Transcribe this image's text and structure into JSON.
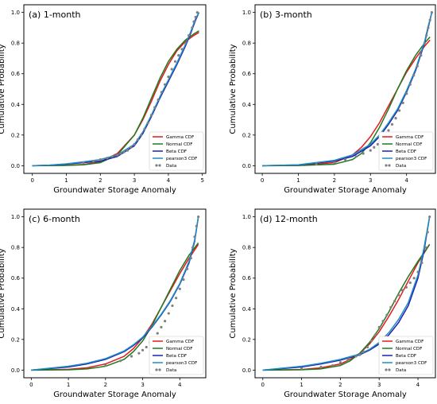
{
  "chart_data": [
    {
      "type": "line",
      "title": "(a) 1-month",
      "xlabel": "Groundwater Storage Anomaly",
      "ylabel": "Cumulative Probability",
      "xlim": [
        -0.25,
        5.1
      ],
      "ylim": [
        -0.05,
        1.05
      ],
      "xticks": [
        0,
        1,
        2,
        3,
        4,
        5
      ],
      "yticks": [
        0.0,
        0.2,
        0.4,
        0.6,
        0.8,
        1.0
      ],
      "grid": false,
      "legend": "bottom-right",
      "series": [
        {
          "name": "Gamma CDF",
          "color": "#e31a1c",
          "x": [
            0,
            1,
            1.5,
            2,
            2.5,
            3,
            3.25,
            3.5,
            3.75,
            4,
            4.25,
            4.5,
            4.75,
            4.9
          ],
          "y": [
            0,
            0.003,
            0.008,
            0.025,
            0.08,
            0.2,
            0.3,
            0.42,
            0.55,
            0.66,
            0.75,
            0.81,
            0.85,
            0.87
          ]
        },
        {
          "name": "Normal CDF",
          "color": "#1f7a1f",
          "x": [
            0,
            1,
            1.5,
            2,
            2.5,
            3,
            3.25,
            3.5,
            3.75,
            4,
            4.25,
            4.5,
            4.75,
            4.9
          ],
          "y": [
            0,
            0.002,
            0.006,
            0.02,
            0.07,
            0.2,
            0.31,
            0.44,
            0.57,
            0.68,
            0.76,
            0.82,
            0.86,
            0.88
          ]
        },
        {
          "name": "Beta CDF",
          "color": "#1f1fb4",
          "x": [
            0,
            0.5,
            1,
            1.5,
            2,
            2.5,
            3,
            3.25,
            3.5,
            3.75,
            4,
            4.25,
            4.5,
            4.65,
            4.8,
            4.9
          ],
          "y": [
            0,
            0.003,
            0.01,
            0.02,
            0.03,
            0.06,
            0.13,
            0.21,
            0.32,
            0.44,
            0.55,
            0.66,
            0.78,
            0.86,
            0.95,
            1.0
          ]
        },
        {
          "name": "pearson3 CDF",
          "color": "#1f8fbf",
          "x": [
            0,
            0.5,
            1,
            1.5,
            2,
            2.5,
            3,
            3.25,
            3.5,
            3.75,
            4,
            4.25,
            4.5,
            4.65,
            4.8,
            4.9
          ],
          "y": [
            0,
            0.004,
            0.012,
            0.025,
            0.04,
            0.07,
            0.14,
            0.22,
            0.33,
            0.45,
            0.56,
            0.67,
            0.79,
            0.87,
            0.96,
            1.0
          ]
        },
        {
          "name": "Data",
          "color": "#808080",
          "marker": "o",
          "x": [
            1.5,
            1.8,
            2.0,
            2.2,
            2.35,
            2.5,
            2.6,
            2.7,
            2.8,
            2.9,
            3.0,
            3.1,
            3.2,
            3.3,
            3.4,
            3.5,
            3.6,
            3.7,
            3.8,
            3.9,
            4.0,
            4.1,
            4.2,
            4.3,
            4.4,
            4.5,
            4.6,
            4.7,
            4.75,
            4.8,
            4.85
          ],
          "y": [
            0.02,
            0.03,
            0.04,
            0.05,
            0.06,
            0.07,
            0.08,
            0.09,
            0.1,
            0.12,
            0.14,
            0.17,
            0.2,
            0.24,
            0.28,
            0.33,
            0.38,
            0.43,
            0.48,
            0.53,
            0.58,
            0.63,
            0.68,
            0.72,
            0.76,
            0.8,
            0.85,
            0.9,
            0.94,
            0.97,
            1.0
          ]
        }
      ]
    },
    {
      "type": "line",
      "title": "(b) 3-month",
      "xlabel": "Groundwater Storage Anomaly",
      "ylabel": "Cumulative Probability",
      "xlim": [
        -0.2,
        4.8
      ],
      "ylim": [
        -0.05,
        1.05
      ],
      "xticks": [
        0,
        1,
        2,
        3,
        4
      ],
      "yticks": [
        0.0,
        0.2,
        0.4,
        0.6,
        0.8,
        1.0
      ],
      "grid": false,
      "legend": "bottom-right",
      "series": [
        {
          "name": "Gamma CDF",
          "color": "#e31a1c",
          "x": [
            0,
            1,
            2,
            2.5,
            2.75,
            3,
            3.25,
            3.5,
            3.75,
            4,
            4.25,
            4.5,
            4.65
          ],
          "y": [
            0,
            0.001,
            0.02,
            0.07,
            0.12,
            0.19,
            0.28,
            0.39,
            0.5,
            0.61,
            0.7,
            0.78,
            0.82
          ]
        },
        {
          "name": "Normal CDF",
          "color": "#1f7a1f",
          "x": [
            0,
            1,
            2,
            2.5,
            2.75,
            3,
            3.25,
            3.5,
            3.75,
            4,
            4.25,
            4.5,
            4.65
          ],
          "y": [
            0,
            0.001,
            0.01,
            0.04,
            0.08,
            0.15,
            0.25,
            0.37,
            0.5,
            0.62,
            0.72,
            0.8,
            0.84
          ]
        },
        {
          "name": "Beta CDF",
          "color": "#1f1fb4",
          "x": [
            0,
            1,
            2,
            2.5,
            3,
            3.25,
            3.5,
            3.75,
            4,
            4.25,
            4.5,
            4.6,
            4.7
          ],
          "y": [
            0,
            0.005,
            0.03,
            0.06,
            0.13,
            0.19,
            0.27,
            0.36,
            0.48,
            0.62,
            0.8,
            0.9,
            1.0
          ]
        },
        {
          "name": "pearson3 CDF",
          "color": "#1f8fbf",
          "x": [
            0,
            1,
            2,
            2.5,
            3,
            3.25,
            3.5,
            3.75,
            4,
            4.25,
            4.5,
            4.6,
            4.7
          ],
          "y": [
            0,
            0.006,
            0.035,
            0.07,
            0.14,
            0.2,
            0.28,
            0.37,
            0.49,
            0.63,
            0.81,
            0.91,
            1.0
          ]
        },
        {
          "name": "Data",
          "color": "#808080",
          "marker": "o",
          "x": [
            1.5,
            2.0,
            2.3,
            2.6,
            2.8,
            3.0,
            3.1,
            3.2,
            3.3,
            3.4,
            3.5,
            3.6,
            3.7,
            3.8,
            3.9,
            4.0,
            4.1,
            4.2,
            4.3,
            4.4,
            4.5,
            4.55,
            4.6,
            4.65,
            4.7
          ],
          "y": [
            0.01,
            0.02,
            0.04,
            0.06,
            0.08,
            0.1,
            0.12,
            0.14,
            0.17,
            0.2,
            0.23,
            0.27,
            0.31,
            0.36,
            0.41,
            0.47,
            0.53,
            0.59,
            0.65,
            0.72,
            0.8,
            0.85,
            0.9,
            0.95,
            1.0
          ]
        }
      ]
    },
    {
      "type": "line",
      "title": "(c) 6-month",
      "xlabel": "Groundwater Storage Anomaly",
      "ylabel": "Cumulative Probability",
      "xlim": [
        -0.2,
        4.7
      ],
      "ylim": [
        -0.05,
        1.05
      ],
      "xticks": [
        0,
        1,
        2,
        3,
        4
      ],
      "yticks": [
        0.0,
        0.2,
        0.4,
        0.6,
        0.8,
        1.0
      ],
      "grid": false,
      "legend": "bottom-right",
      "series": [
        {
          "name": "Gamma CDF",
          "color": "#e31a1c",
          "x": [
            0,
            1,
            1.5,
            2,
            2.5,
            2.75,
            3,
            3.25,
            3.5,
            3.75,
            4,
            4.25,
            4.5
          ],
          "y": [
            0,
            0.005,
            0.015,
            0.04,
            0.09,
            0.14,
            0.21,
            0.3,
            0.41,
            0.52,
            0.63,
            0.73,
            0.82
          ]
        },
        {
          "name": "Normal CDF",
          "color": "#1f7a1f",
          "x": [
            0,
            1,
            1.5,
            2,
            2.5,
            2.75,
            3,
            3.25,
            3.5,
            3.75,
            4,
            4.25,
            4.5
          ],
          "y": [
            0,
            0.002,
            0.008,
            0.025,
            0.07,
            0.12,
            0.19,
            0.29,
            0.41,
            0.53,
            0.65,
            0.75,
            0.83
          ]
        },
        {
          "name": "Beta CDF",
          "color": "#1f1fb4",
          "x": [
            0,
            1,
            1.5,
            2,
            2.5,
            2.75,
            3,
            3.25,
            3.5,
            3.75,
            4,
            4.25,
            4.4,
            4.5
          ],
          "y": [
            0,
            0.02,
            0.04,
            0.07,
            0.12,
            0.16,
            0.21,
            0.28,
            0.36,
            0.45,
            0.56,
            0.7,
            0.84,
            1.0
          ]
        },
        {
          "name": "pearson3 CDF",
          "color": "#1f8fbf",
          "x": [
            0,
            1,
            1.5,
            2,
            2.5,
            2.75,
            3,
            3.25,
            3.5,
            3.75,
            4,
            4.25,
            4.4,
            4.5
          ],
          "y": [
            0,
            0.025,
            0.045,
            0.075,
            0.125,
            0.165,
            0.215,
            0.285,
            0.365,
            0.455,
            0.565,
            0.71,
            0.85,
            1.0
          ]
        },
        {
          "name": "Data",
          "color": "#808080",
          "marker": "o",
          "x": [
            2.0,
            2.4,
            2.7,
            2.9,
            3.0,
            3.1,
            3.2,
            3.3,
            3.4,
            3.5,
            3.6,
            3.7,
            3.8,
            3.9,
            4.0,
            4.1,
            4.2,
            4.3,
            4.35,
            4.4,
            4.45,
            4.5
          ],
          "y": [
            0.03,
            0.06,
            0.09,
            0.11,
            0.13,
            0.15,
            0.18,
            0.21,
            0.24,
            0.28,
            0.32,
            0.37,
            0.42,
            0.47,
            0.53,
            0.59,
            0.66,
            0.73,
            0.8,
            0.87,
            0.94,
            1.0
          ]
        }
      ]
    },
    {
      "type": "line",
      "title": "(d) 12-month",
      "xlabel": "Groundwater Storage Anomaly",
      "ylabel": "Cumulative Probability",
      "xlim": [
        -0.2,
        4.45
      ],
      "ylim": [
        -0.05,
        1.05
      ],
      "xticks": [
        0,
        1,
        2,
        3,
        4
      ],
      "yticks": [
        0.0,
        0.2,
        0.4,
        0.6,
        0.8,
        1.0
      ],
      "grid": false,
      "legend": "bottom-right",
      "series": [
        {
          "name": "Gamma CDF",
          "color": "#e31a1c",
          "x": [
            0,
            1,
            1.5,
            2,
            2.25,
            2.5,
            2.75,
            3,
            3.25,
            3.5,
            3.75,
            4,
            4.3
          ],
          "y": [
            0,
            0.004,
            0.015,
            0.04,
            0.07,
            0.11,
            0.17,
            0.25,
            0.35,
            0.46,
            0.58,
            0.7,
            0.82
          ]
        },
        {
          "name": "Normal CDF",
          "color": "#1f7a1f",
          "x": [
            0,
            1,
            1.5,
            2,
            2.25,
            2.5,
            2.75,
            3,
            3.25,
            3.5,
            3.75,
            4,
            4.3
          ],
          "y": [
            0,
            0.002,
            0.008,
            0.03,
            0.06,
            0.11,
            0.18,
            0.27,
            0.38,
            0.5,
            0.61,
            0.71,
            0.82
          ]
        },
        {
          "name": "Beta CDF",
          "color": "#1f1fb4",
          "x": [
            0,
            1,
            1.5,
            2,
            2.5,
            2.75,
            3,
            3.25,
            3.5,
            3.75,
            4,
            4.15,
            4.3
          ],
          "y": [
            0,
            0.02,
            0.04,
            0.065,
            0.1,
            0.13,
            0.17,
            0.23,
            0.31,
            0.42,
            0.6,
            0.77,
            1.0
          ]
        },
        {
          "name": "pearson3 CDF",
          "color": "#1f8fbf",
          "x": [
            0,
            1,
            1.5,
            2,
            2.5,
            2.75,
            3,
            3.25,
            3.5,
            3.75,
            4,
            4.15,
            4.3
          ],
          "y": [
            0,
            0.025,
            0.045,
            0.07,
            0.105,
            0.135,
            0.18,
            0.245,
            0.33,
            0.44,
            0.62,
            0.79,
            1.0
          ]
        },
        {
          "name": "Data",
          "color": "#808080",
          "marker": "o",
          "x": [
            1.0,
            1.5,
            1.8,
            2.0,
            2.2,
            2.4,
            2.5,
            2.6,
            2.7,
            2.8,
            2.9,
            3.0,
            3.1,
            3.2,
            3.3,
            3.4,
            3.5,
            3.6,
            3.7,
            3.8,
            3.9,
            4.0,
            4.1,
            4.2,
            4.25,
            4.3
          ],
          "y": [
            0.01,
            0.02,
            0.03,
            0.05,
            0.07,
            0.09,
            0.1,
            0.12,
            0.15,
            0.19,
            0.23,
            0.28,
            0.32,
            0.36,
            0.41,
            0.45,
            0.49,
            0.52,
            0.54,
            0.57,
            0.6,
            0.64,
            0.7,
            0.8,
            0.9,
            1.0
          ]
        }
      ]
    }
  ]
}
